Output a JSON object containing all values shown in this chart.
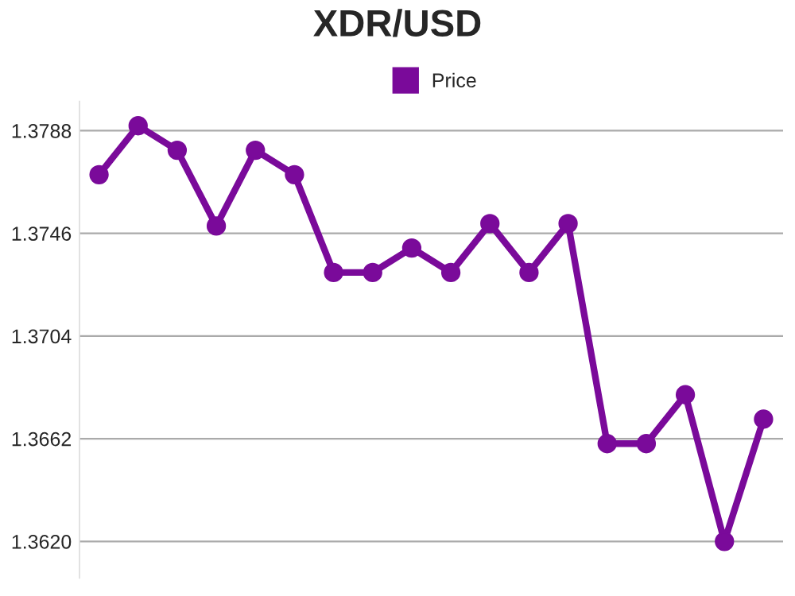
{
  "chart_data": {
    "type": "line",
    "title": "XDR/USD",
    "categories": [
      null,
      null,
      null,
      null,
      null,
      null,
      null,
      null,
      null,
      null,
      null,
      null,
      null,
      null,
      null,
      null,
      null,
      null
    ],
    "series": [
      {
        "name": "Price",
        "color": "#7a0a9a",
        "values": [
          1.377,
          1.379,
          1.378,
          1.3749,
          1.378,
          1.377,
          1.373,
          1.373,
          1.374,
          1.373,
          1.375,
          1.373,
          1.375,
          1.366,
          1.366,
          1.368,
          1.362,
          1.367
        ]
      }
    ],
    "ylim": [
      1.3605,
      1.38
    ],
    "yticks": [
      {
        "value": 1.362,
        "label": "1.3620"
      },
      1.3662,
      1.3704,
      1.3746,
      1.3788
    ],
    "grid": "y",
    "legend": "top",
    "marker": "circle",
    "line_style": "solid"
  }
}
